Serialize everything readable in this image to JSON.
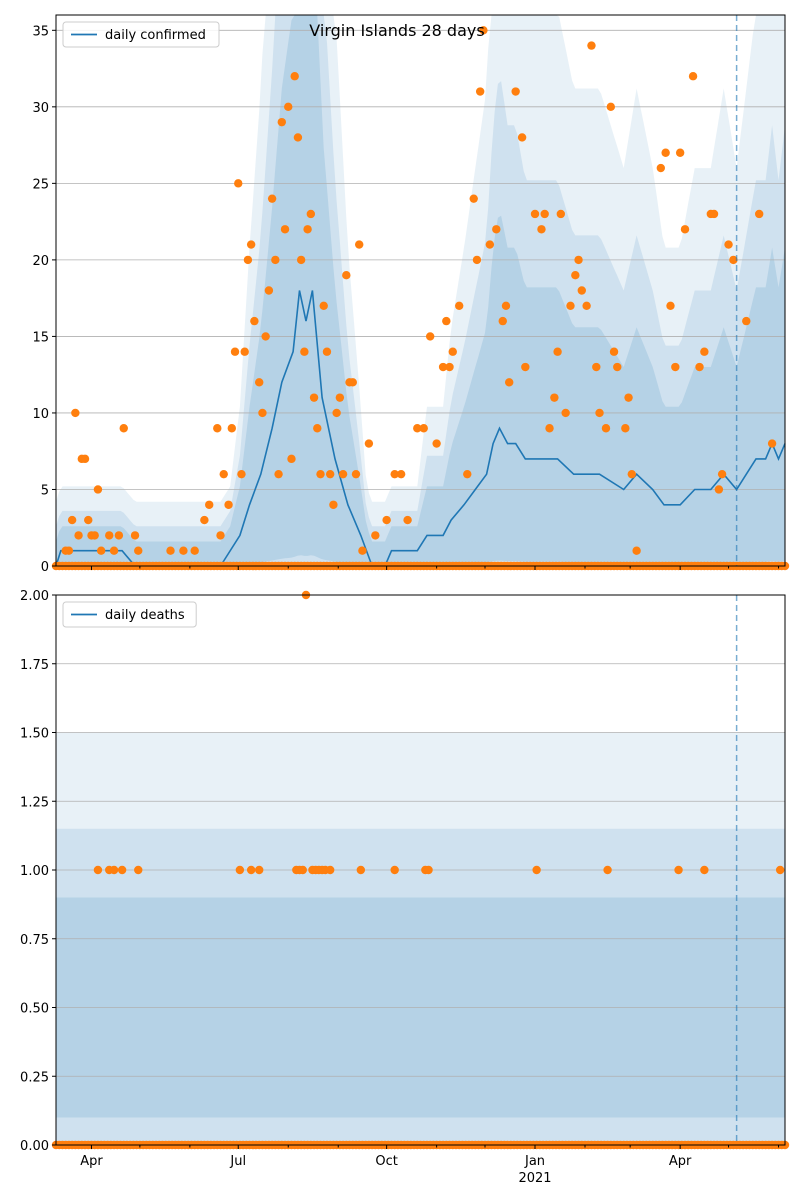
{
  "chart_data": [
    {
      "type": "line",
      "title": "Virgin Islands 28 days",
      "legend": {
        "entries": [
          "daily confirmed"
        ],
        "placement": "upper-left"
      },
      "grid": "horizontal",
      "ylim": [
        0,
        36
      ],
      "yticks": [
        0,
        5,
        10,
        15,
        20,
        25,
        30,
        35
      ],
      "ytick_labels": [
        "0",
        "5",
        "10",
        "15",
        "20",
        "25",
        "30",
        "35"
      ],
      "xlim": [
        "2020-03-10",
        "2021-06-05"
      ],
      "xticks": [
        {
          "date": "2020-04-01",
          "label": "Apr"
        },
        {
          "date": "2020-07-01",
          "label": "Jul"
        },
        {
          "date": "2020-10-01",
          "label": "Oct"
        },
        {
          "date": "2021-01-01",
          "label": "Jan"
        },
        {
          "date": "2021-04-01",
          "label": "Apr"
        }
      ],
      "secondary_xlabel": {
        "date": "2021-01-01",
        "label": "2021"
      },
      "forecast_start": "2021-05-06",
      "series": [
        {
          "name": "daily confirmed",
          "kind": "line",
          "color": "#1f77b4",
          "points": [
            [
              "2020-03-10",
              0
            ],
            [
              "2020-03-13",
              1
            ],
            [
              "2020-03-22",
              1
            ],
            [
              "2020-04-20",
              1
            ],
            [
              "2020-04-28",
              0
            ],
            [
              "2020-06-20",
              0
            ],
            [
              "2020-07-02",
              2
            ],
            [
              "2020-07-08",
              4
            ],
            [
              "2020-07-15",
              6
            ],
            [
              "2020-07-22",
              9
            ],
            [
              "2020-07-28",
              12
            ],
            [
              "2020-08-04",
              14
            ],
            [
              "2020-08-08",
              18
            ],
            [
              "2020-08-12",
              16
            ],
            [
              "2020-08-16",
              18
            ],
            [
              "2020-08-22",
              11
            ],
            [
              "2020-08-30",
              7
            ],
            [
              "2020-09-07",
              4
            ],
            [
              "2020-09-15",
              2
            ],
            [
              "2020-09-22",
              0
            ],
            [
              "2020-09-30",
              0
            ],
            [
              "2020-10-04",
              1
            ],
            [
              "2020-10-20",
              1
            ],
            [
              "2020-10-26",
              2
            ],
            [
              "2020-11-05",
              2
            ],
            [
              "2020-11-10",
              3
            ],
            [
              "2020-11-18",
              4
            ],
            [
              "2020-11-25",
              5
            ],
            [
              "2020-12-02",
              6
            ],
            [
              "2020-12-06",
              8
            ],
            [
              "2020-12-10",
              9
            ],
            [
              "2020-12-15",
              8
            ],
            [
              "2020-12-20",
              8
            ],
            [
              "2020-12-26",
              7
            ],
            [
              "2021-01-05",
              7
            ],
            [
              "2021-01-15",
              7
            ],
            [
              "2021-01-25",
              6
            ],
            [
              "2021-02-10",
              6
            ],
            [
              "2021-02-25",
              5
            ],
            [
              "2021-03-05",
              6
            ],
            [
              "2021-03-15",
              5
            ],
            [
              "2021-03-22",
              4
            ],
            [
              "2021-04-01",
              4
            ],
            [
              "2021-04-10",
              5
            ],
            [
              "2021-04-20",
              5
            ],
            [
              "2021-04-28",
              6
            ],
            [
              "2021-05-06",
              5
            ],
            [
              "2021-05-12",
              6
            ],
            [
              "2021-05-18",
              7
            ],
            [
              "2021-05-24",
              7
            ],
            [
              "2021-05-28",
              8
            ],
            [
              "2021-06-01",
              7
            ],
            [
              "2021-06-05",
              8
            ]
          ]
        },
        {
          "name": "",
          "kind": "scatter",
          "color": "#ff7f0e",
          "points": [
            [
              "2020-03-16",
              1
            ],
            [
              "2020-03-18",
              1
            ],
            [
              "2020-03-20",
              3
            ],
            [
              "2020-03-22",
              10
            ],
            [
              "2020-03-24",
              2
            ],
            [
              "2020-03-26",
              7
            ],
            [
              "2020-03-28",
              7
            ],
            [
              "2020-03-30",
              3
            ],
            [
              "2020-04-01",
              2
            ],
            [
              "2020-04-03",
              2
            ],
            [
              "2020-04-05",
              5
            ],
            [
              "2020-04-07",
              1
            ],
            [
              "2020-04-12",
              2
            ],
            [
              "2020-04-15",
              1
            ],
            [
              "2020-04-18",
              2
            ],
            [
              "2020-04-21",
              9
            ],
            [
              "2020-04-28",
              2
            ],
            [
              "2020-04-30",
              1
            ],
            [
              "2020-05-20",
              1
            ],
            [
              "2020-05-28",
              1
            ],
            [
              "2020-06-04",
              1
            ],
            [
              "2020-06-10",
              3
            ],
            [
              "2020-06-13",
              4
            ],
            [
              "2020-06-18",
              9
            ],
            [
              "2020-06-20",
              2
            ],
            [
              "2020-06-22",
              6
            ],
            [
              "2020-06-25",
              4
            ],
            [
              "2020-06-27",
              9
            ],
            [
              "2020-06-29",
              14
            ],
            [
              "2020-07-01",
              25
            ],
            [
              "2020-07-03",
              6
            ],
            [
              "2020-07-05",
              14
            ],
            [
              "2020-07-07",
              20
            ],
            [
              "2020-07-09",
              21
            ],
            [
              "2020-07-11",
              16
            ],
            [
              "2020-07-14",
              12
            ],
            [
              "2020-07-16",
              10
            ],
            [
              "2020-07-18",
              15
            ],
            [
              "2020-07-20",
              18
            ],
            [
              "2020-07-22",
              24
            ],
            [
              "2020-07-24",
              20
            ],
            [
              "2020-07-26",
              6
            ],
            [
              "2020-07-28",
              29
            ],
            [
              "2020-07-30",
              22
            ],
            [
              "2020-08-01",
              30
            ],
            [
              "2020-08-03",
              7
            ],
            [
              "2020-08-05",
              32
            ],
            [
              "2020-08-07",
              28
            ],
            [
              "2020-08-09",
              20
            ],
            [
              "2020-08-11",
              14
            ],
            [
              "2020-08-13",
              22
            ],
            [
              "2020-08-15",
              23
            ],
            [
              "2020-08-17",
              11
            ],
            [
              "2020-08-19",
              9
            ],
            [
              "2020-08-21",
              6
            ],
            [
              "2020-08-23",
              17
            ],
            [
              "2020-08-25",
              14
            ],
            [
              "2020-08-27",
              6
            ],
            [
              "2020-08-29",
              4
            ],
            [
              "2020-08-31",
              10
            ],
            [
              "2020-09-02",
              11
            ],
            [
              "2020-09-04",
              6
            ],
            [
              "2020-09-06",
              19
            ],
            [
              "2020-09-08",
              12
            ],
            [
              "2020-09-10",
              12
            ],
            [
              "2020-09-12",
              6
            ],
            [
              "2020-09-14",
              21
            ],
            [
              "2020-09-16",
              1
            ],
            [
              "2020-09-20",
              8
            ],
            [
              "2020-09-24",
              2
            ],
            [
              "2020-10-01",
              3
            ],
            [
              "2020-10-06",
              6
            ],
            [
              "2020-10-10",
              6
            ],
            [
              "2020-10-14",
              3
            ],
            [
              "2020-10-20",
              9
            ],
            [
              "2020-10-24",
              9
            ],
            [
              "2020-10-28",
              15
            ],
            [
              "2020-11-01",
              8
            ],
            [
              "2020-11-05",
              13
            ],
            [
              "2020-11-07",
              16
            ],
            [
              "2020-11-09",
              13
            ],
            [
              "2020-11-11",
              14
            ],
            [
              "2020-11-15",
              17
            ],
            [
              "2020-11-20",
              6
            ],
            [
              "2020-11-24",
              24
            ],
            [
              "2020-11-26",
              20
            ],
            [
              "2020-11-28",
              31
            ],
            [
              "2020-11-30",
              35
            ],
            [
              "2020-12-04",
              21
            ],
            [
              "2020-12-08",
              22
            ],
            [
              "2020-12-12",
              16
            ],
            [
              "2020-12-14",
              17
            ],
            [
              "2020-12-16",
              12
            ],
            [
              "2020-12-20",
              31
            ],
            [
              "2020-12-24",
              28
            ],
            [
              "2020-12-26",
              13
            ],
            [
              "2021-01-01",
              23
            ],
            [
              "2021-01-05",
              22
            ],
            [
              "2021-01-07",
              23
            ],
            [
              "2021-01-10",
              9
            ],
            [
              "2021-01-13",
              11
            ],
            [
              "2021-01-15",
              14
            ],
            [
              "2021-01-17",
              23
            ],
            [
              "2021-01-20",
              10
            ],
            [
              "2021-01-23",
              17
            ],
            [
              "2021-01-26",
              19
            ],
            [
              "2021-01-28",
              20
            ],
            [
              "2021-01-30",
              18
            ],
            [
              "2021-02-02",
              17
            ],
            [
              "2021-02-05",
              34
            ],
            [
              "2021-02-08",
              13
            ],
            [
              "2021-02-10",
              10
            ],
            [
              "2021-02-14",
              9
            ],
            [
              "2021-02-17",
              30
            ],
            [
              "2021-02-19",
              14
            ],
            [
              "2021-02-21",
              13
            ],
            [
              "2021-02-26",
              9
            ],
            [
              "2021-02-28",
              11
            ],
            [
              "2021-03-02",
              6
            ],
            [
              "2021-03-05",
              1
            ],
            [
              "2021-03-20",
              26
            ],
            [
              "2021-03-23",
              27
            ],
            [
              "2021-03-26",
              17
            ],
            [
              "2021-03-29",
              13
            ],
            [
              "2021-04-01",
              27
            ],
            [
              "2021-04-04",
              22
            ],
            [
              "2021-04-09",
              32
            ],
            [
              "2021-04-13",
              13
            ],
            [
              "2021-04-16",
              14
            ],
            [
              "2021-04-20",
              23
            ],
            [
              "2021-04-22",
              23
            ],
            [
              "2021-04-25",
              5
            ],
            [
              "2021-04-27",
              6
            ],
            [
              "2021-05-01",
              21
            ],
            [
              "2021-05-04",
              20
            ],
            [
              "2021-05-12",
              16
            ],
            [
              "2021-05-20",
              23
            ],
            [
              "2021-05-28",
              8
            ]
          ]
        }
      ]
    },
    {
      "type": "line",
      "title": "",
      "legend": {
        "entries": [
          "daily deaths"
        ],
        "placement": "upper-left"
      },
      "grid": "horizontal",
      "ylim": [
        0,
        2
      ],
      "yticks": [
        0,
        0.25,
        0.5,
        0.75,
        1,
        1.25,
        1.5,
        1.75,
        2
      ],
      "ytick_labels": [
        "0.00",
        "0.25",
        "0.50",
        "0.75",
        "1.00",
        "1.25",
        "1.50",
        "1.75",
        "2.00"
      ],
      "xlim": [
        "2020-03-10",
        "2021-06-05"
      ],
      "xticks": [
        {
          "date": "2020-04-01",
          "label": "Apr"
        },
        {
          "date": "2020-07-01",
          "label": "Jul"
        },
        {
          "date": "2020-10-01",
          "label": "Oct"
        },
        {
          "date": "2021-01-01",
          "label": "Jan"
        },
        {
          "date": "2021-04-01",
          "label": "Apr"
        }
      ],
      "secondary_xlabel": {
        "date": "2021-01-01",
        "label": "2021"
      },
      "forecast_start": "2021-05-06",
      "series": [
        {
          "name": "daily deaths",
          "kind": "line",
          "color": "#1f77b4",
          "points": [
            [
              "2020-03-10",
              0
            ],
            [
              "2021-06-05",
              0
            ]
          ]
        },
        {
          "name": "",
          "kind": "scatter",
          "color": "#ff7f0e",
          "points": [
            [
              "2020-04-05",
              1
            ],
            [
              "2020-04-12",
              1
            ],
            [
              "2020-04-15",
              1
            ],
            [
              "2020-04-20",
              1
            ],
            [
              "2020-04-30",
              1
            ],
            [
              "2020-07-02",
              1
            ],
            [
              "2020-07-09",
              1
            ],
            [
              "2020-07-14",
              1
            ],
            [
              "2020-08-06",
              1
            ],
            [
              "2020-08-08",
              1
            ],
            [
              "2020-08-10",
              1
            ],
            [
              "2020-08-12",
              2
            ],
            [
              "2020-08-16",
              1
            ],
            [
              "2020-08-18",
              1
            ],
            [
              "2020-08-20",
              1
            ],
            [
              "2020-08-22",
              1
            ],
            [
              "2020-08-24",
              1
            ],
            [
              "2020-08-27",
              1
            ],
            [
              "2020-09-15",
              1
            ],
            [
              "2020-10-06",
              1
            ],
            [
              "2020-10-25",
              1
            ],
            [
              "2020-10-27",
              1
            ],
            [
              "2021-01-02",
              1
            ],
            [
              "2021-02-15",
              1
            ],
            [
              "2021-03-31",
              1
            ],
            [
              "2021-04-16",
              1
            ],
            [
              "2021-06-02",
              1
            ]
          ]
        }
      ]
    }
  ]
}
